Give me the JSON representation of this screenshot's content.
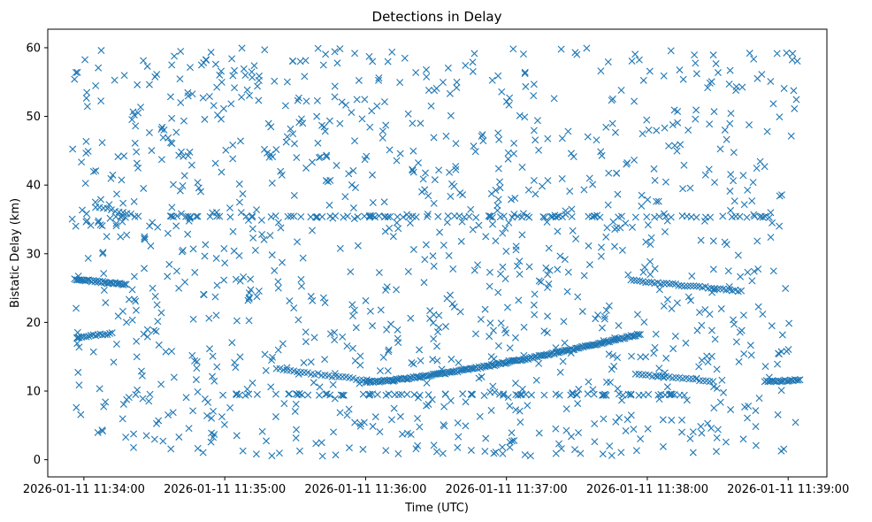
{
  "chart_data": {
    "type": "scatter",
    "title": "Detections in Delay",
    "xlabel": "Time (UTC)",
    "ylabel": "Bistatic Delay (km)",
    "x_unit": "seconds after 2026-01-11 11:34:00",
    "xlim": [
      -15.4,
      316.5
    ],
    "ylim": [
      -2.5,
      62.7
    ],
    "x_ticks": [
      {
        "value": 0,
        "label": "2026-01-11 11:34:00"
      },
      {
        "value": 60,
        "label": "2026-01-11 11:35:00"
      },
      {
        "value": 120,
        "label": "2026-01-11 11:36:00"
      },
      {
        "value": 180,
        "label": "2026-01-11 11:37:00"
      },
      {
        "value": 240,
        "label": "2026-01-11 11:38:00"
      },
      {
        "value": 300,
        "label": "2026-01-11 11:39:00"
      }
    ],
    "y_ticks": [
      {
        "value": 0,
        "label": "0"
      },
      {
        "value": 10,
        "label": "10"
      },
      {
        "value": 20,
        "label": "20"
      },
      {
        "value": 30,
        "label": "30"
      },
      {
        "value": 40,
        "label": "40"
      },
      {
        "value": 50,
        "label": "50"
      },
      {
        "value": 60,
        "label": "60"
      }
    ],
    "marker": "x",
    "marker_color": "#1f77b4",
    "series": [
      {
        "name": "clutter_line_35km",
        "x_range": [
          12,
          292
        ],
        "y_start": 35.4,
        "y_end": 35.4,
        "count": 110
      },
      {
        "name": "clutter_line_9_5km",
        "x_range": [
          22,
          262
        ],
        "y_start": 9.5,
        "y_end": 9.5,
        "count": 90
      },
      {
        "name": "track_a_26km",
        "x_range": [
          -4,
          18
        ],
        "y_start": 26.3,
        "y_end": 25.5,
        "count": 34
      },
      {
        "name": "track_b_18km",
        "x_range": [
          -3,
          12
        ],
        "y_start": 17.8,
        "y_end": 18.4,
        "count": 16
      },
      {
        "name": "track_c_12km",
        "x_range": [
          82,
          122
        ],
        "y_start": 13.2,
        "y_end": 11.5,
        "count": 28
      },
      {
        "name": "track_d_rising",
        "x_range": [
          120,
          237
        ],
        "y_start": 11.3,
        "y_end": 18.3,
        "count": 180
      },
      {
        "name": "track_e_12km",
        "x_range": [
          235,
          268
        ],
        "y_start": 12.5,
        "y_end": 11.4,
        "count": 24
      },
      {
        "name": "track_f_26km",
        "x_range": [
          233,
          280
        ],
        "y_start": 26.1,
        "y_end": 24.6,
        "count": 38
      },
      {
        "name": "track_g_11_5km",
        "x_range": [
          290,
          305
        ],
        "y_start": 11.4,
        "y_end": 11.6,
        "count": 22
      },
      {
        "name": "track_h_36km",
        "x_range": [
          5,
          20
        ],
        "y_start": 36.8,
        "y_end": 35.8,
        "count": 10
      },
      {
        "name": "noise",
        "x_range": [
          -5,
          304
        ],
        "y_range": [
          0.5,
          60
        ],
        "count": 1150
      }
    ]
  }
}
